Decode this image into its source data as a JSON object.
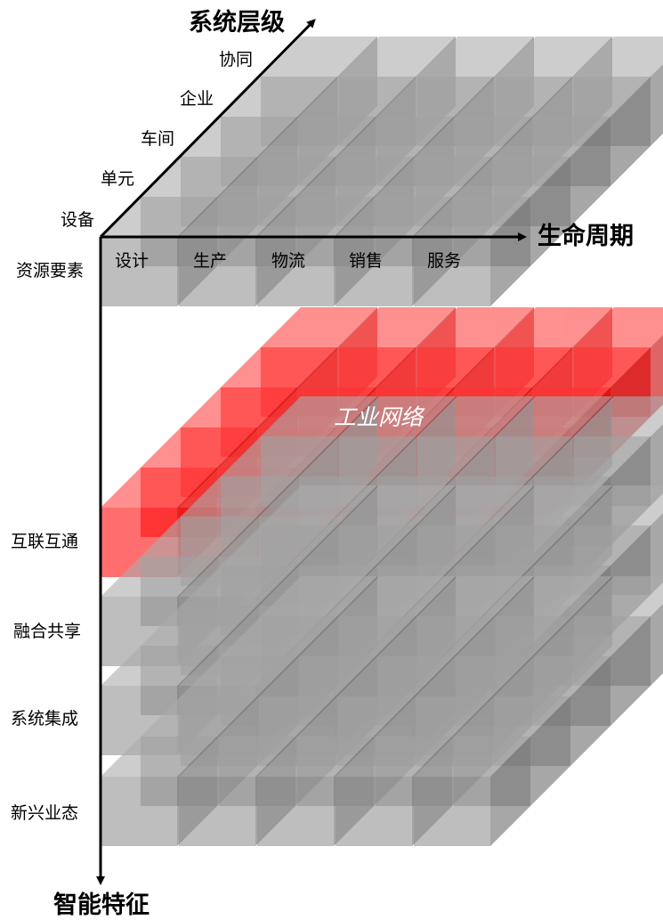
{
  "axes": {
    "system_levels_title": "系统层级",
    "lifecycle_title": "生命周期",
    "intelligence_title": "智能特征"
  },
  "system_levels": [
    "设备",
    "单元",
    "车间",
    "企业",
    "协同"
  ],
  "lifecycle": [
    "设计",
    "生产",
    "物流",
    "销售",
    "服务"
  ],
  "intelligence_features": [
    "资源要素",
    "互联互通",
    "融合共享",
    "系统集成",
    "新兴业态"
  ],
  "highlight": {
    "label": "工业网络",
    "feature": "互联互通",
    "color": "#ff0000"
  },
  "colors": {
    "cube": "#8c8c8c",
    "highlight": "#ff0000",
    "axis": "#000000"
  }
}
